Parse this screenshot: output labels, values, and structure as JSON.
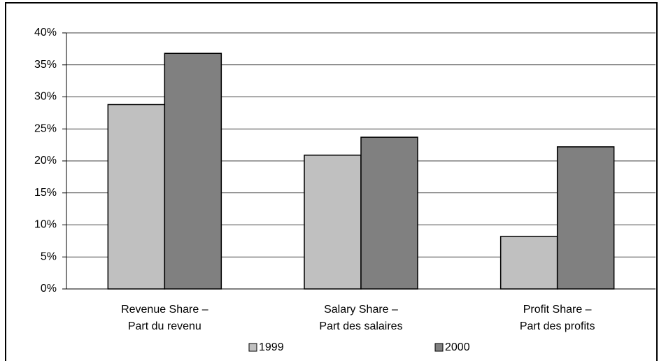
{
  "chart_data": {
    "type": "bar",
    "categories": [
      [
        "Revenue Share –",
        "Part du revenu"
      ],
      [
        "Salary Share –",
        "Part des salaires"
      ],
      [
        "Profit Share –",
        "Part des profits"
      ]
    ],
    "series": [
      {
        "name": "1999",
        "color": "#c0c0c0",
        "values": [
          28.8,
          20.9,
          8.2
        ]
      },
      {
        "name": "2000",
        "color": "#808080",
        "values": [
          36.8,
          23.7,
          22.2
        ]
      }
    ],
    "ylim": [
      0,
      40
    ],
    "yticks": [
      {
        "value": 0,
        "label": "0%"
      },
      {
        "value": 5,
        "label": "5%"
      },
      {
        "value": 10,
        "label": "10%"
      },
      {
        "value": 15,
        "label": "15%"
      },
      {
        "value": 20,
        "label": "20%"
      },
      {
        "value": 25,
        "label": "25%"
      },
      {
        "value": 30,
        "label": "30%"
      },
      {
        "value": 35,
        "label": "35%"
      },
      {
        "value": 40,
        "label": "40%"
      }
    ],
    "grid": true,
    "legend": "bottom"
  }
}
